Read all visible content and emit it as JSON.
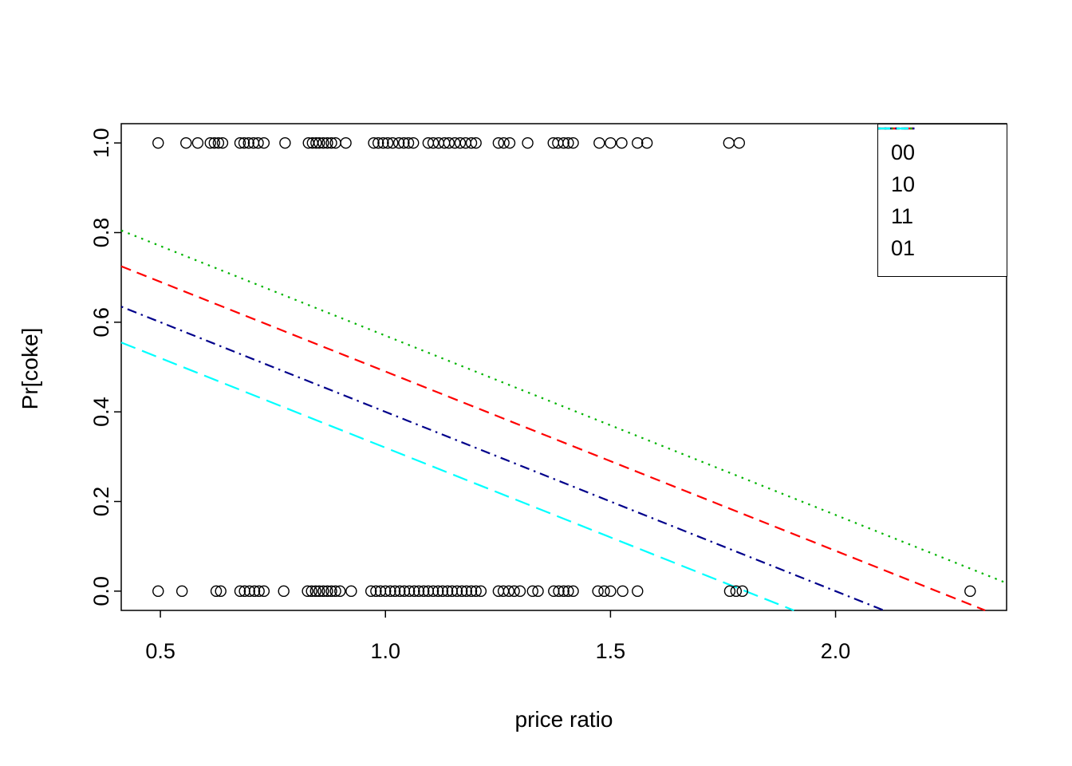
{
  "chart_data": {
    "type": "scatter",
    "title": "",
    "xlabel": "price ratio",
    "ylabel": "Pr[coke]",
    "xlim": [
      0.413,
      2.38
    ],
    "ylim": [
      -0.043,
      1.043
    ],
    "grid": false,
    "x_ticks": {
      "values": [
        0.5,
        1.0,
        1.5,
        2.0
      ],
      "labels": [
        "0.5",
        "1.0",
        "1.5",
        "2.0"
      ]
    },
    "y_ticks": {
      "values": [
        0.0,
        0.2,
        0.4,
        0.6,
        0.8,
        1.0
      ],
      "labels": [
        "0.0",
        "0.2",
        "0.4",
        "0.6",
        "0.8",
        "1.0"
      ]
    },
    "scatter": {
      "marker": "open-circle",
      "color": "#000000",
      "y1_x": [
        0.495,
        0.557,
        0.583,
        0.611,
        0.62,
        0.629,
        0.638,
        0.677,
        0.686,
        0.696,
        0.707,
        0.717,
        0.73,
        0.777,
        0.829,
        0.838,
        0.846,
        0.853,
        0.862,
        0.871,
        0.88,
        0.889,
        0.912,
        0.974,
        0.984,
        0.995,
        1.005,
        1.016,
        1.03,
        1.041,
        1.051,
        1.062,
        1.095,
        1.106,
        1.118,
        1.131,
        1.141,
        1.154,
        1.166,
        1.178,
        1.191,
        1.201,
        1.251,
        1.263,
        1.276,
        1.316,
        1.373,
        1.383,
        1.396,
        1.406,
        1.417,
        1.475,
        1.5,
        1.525,
        1.56,
        1.581,
        1.763,
        1.786
      ],
      "y0_x": [
        0.495,
        0.548,
        0.624,
        0.634,
        0.677,
        0.687,
        0.698,
        0.709,
        0.719,
        0.73,
        0.774,
        0.827,
        0.836,
        0.845,
        0.853,
        0.862,
        0.871,
        0.88,
        0.889,
        0.899,
        0.924,
        0.968,
        0.979,
        0.989,
        1.0,
        1.011,
        1.021,
        1.032,
        1.042,
        1.053,
        1.064,
        1.074,
        1.085,
        1.095,
        1.106,
        1.117,
        1.127,
        1.138,
        1.148,
        1.159,
        1.17,
        1.18,
        1.191,
        1.201,
        1.212,
        1.251,
        1.262,
        1.274,
        1.286,
        1.299,
        1.327,
        1.339,
        1.374,
        1.385,
        1.396,
        1.406,
        1.417,
        1.472,
        1.486,
        1.5,
        1.527,
        1.56,
        1.765,
        1.779,
        1.793,
        2.299
      ]
    },
    "lines": [
      {
        "label": "00",
        "color": "#ff0000",
        "linetype": "dashed",
        "intercept": 0.89,
        "slope": -0.4
      },
      {
        "label": "10",
        "color": "#00b400",
        "linetype": "dotted",
        "intercept": 0.97,
        "slope": -0.4
      },
      {
        "label": "11",
        "color": "#00008b",
        "linetype": "dotdash",
        "intercept": 0.8,
        "slope": -0.4
      },
      {
        "label": "01",
        "color": "#00ffff",
        "linetype": "longdash",
        "intercept": 0.72,
        "slope": -0.4
      }
    ],
    "legend": {
      "position": "topright",
      "entries": [
        "00",
        "10",
        "11",
        "01"
      ]
    }
  }
}
